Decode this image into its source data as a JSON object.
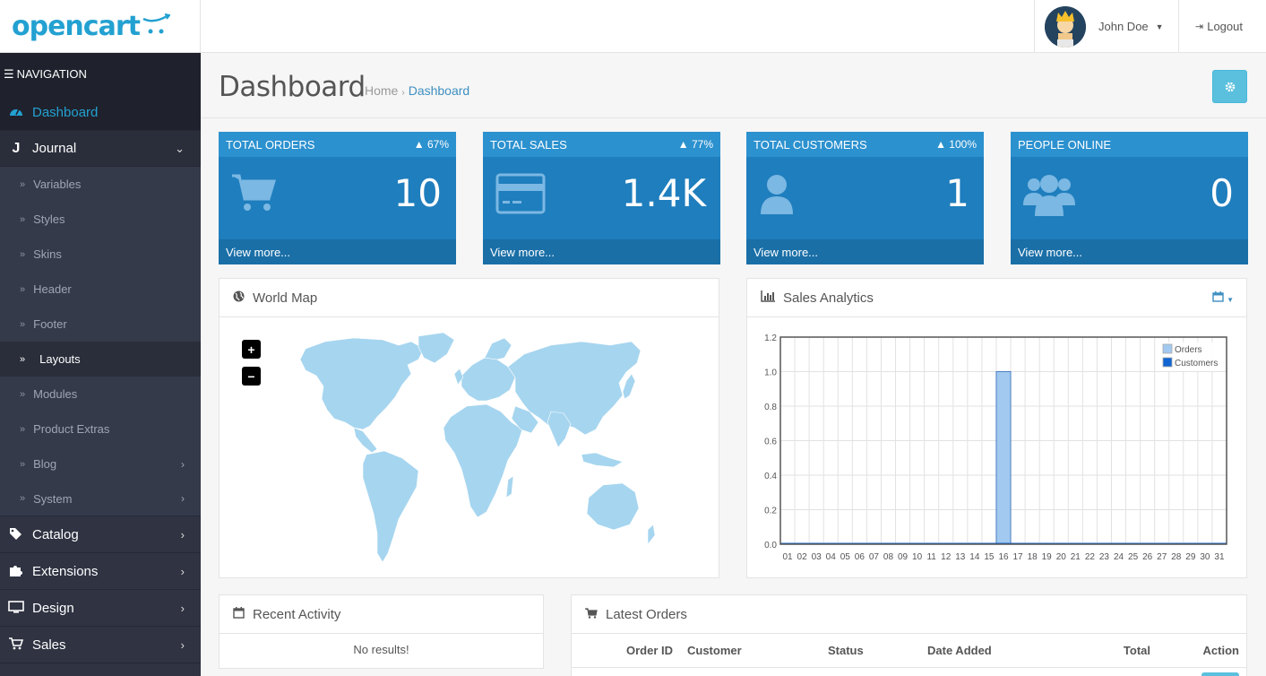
{
  "brand": {
    "name": "opencart"
  },
  "header": {
    "user_name": "John Doe",
    "logout_label": "Logout"
  },
  "navigation": {
    "title": "NAVIGATION",
    "items": [
      {
        "label": "Dashboard",
        "icon": "dashboard-icon",
        "active": true
      },
      {
        "label": "Journal",
        "icon": "journal-icon",
        "open": true
      },
      {
        "label": "Catalog",
        "icon": "tags-icon"
      },
      {
        "label": "Extensions",
        "icon": "puzzle-icon"
      },
      {
        "label": "Design",
        "icon": "monitor-icon"
      },
      {
        "label": "Sales",
        "icon": "cart-icon"
      }
    ],
    "journal_sub": [
      {
        "label": "Variables"
      },
      {
        "label": "Styles"
      },
      {
        "label": "Skins"
      },
      {
        "label": "Header"
      },
      {
        "label": "Footer"
      },
      {
        "label": "Layouts",
        "current": true
      },
      {
        "label": "Modules"
      },
      {
        "label": "Product Extras"
      },
      {
        "label": "Blog",
        "has_children": true
      },
      {
        "label": "System",
        "has_children": true
      }
    ]
  },
  "page": {
    "title": "Dashboard",
    "breadcrumb": [
      "Home",
      "Dashboard"
    ]
  },
  "tiles": [
    {
      "title": "TOTAL ORDERS",
      "percent": "67%",
      "value": "10",
      "more": "View more...",
      "icon": "cart-icon"
    },
    {
      "title": "TOTAL SALES",
      "percent": "77%",
      "value": "1.4K",
      "more": "View more...",
      "icon": "credit-card-icon"
    },
    {
      "title": "TOTAL CUSTOMERS",
      "percent": "100%",
      "value": "1",
      "more": "View more...",
      "icon": "user-icon"
    },
    {
      "title": "PEOPLE ONLINE",
      "percent": "",
      "value": "0",
      "more": "View more...",
      "icon": "users-icon"
    }
  ],
  "world_map": {
    "title": "World Map",
    "zoom_in": "+",
    "zoom_out": "−",
    "color": "#a6d5ef"
  },
  "chart_data": {
    "type": "bar",
    "title": "Sales Analytics",
    "categories": [
      "01",
      "02",
      "03",
      "04",
      "05",
      "06",
      "07",
      "08",
      "09",
      "10",
      "11",
      "12",
      "13",
      "14",
      "15",
      "16",
      "17",
      "18",
      "19",
      "20",
      "21",
      "22",
      "23",
      "24",
      "25",
      "26",
      "27",
      "28",
      "29",
      "30",
      "31"
    ],
    "series": [
      {
        "name": "Orders",
        "color": "#a2c9f0",
        "values": [
          0,
          0,
          0,
          0,
          0,
          0,
          0,
          0,
          0,
          0,
          0,
          0,
          0,
          0,
          0,
          1,
          0,
          0,
          0,
          0,
          0,
          0,
          0,
          0,
          0,
          0,
          0,
          0,
          0,
          0,
          0
        ]
      },
      {
        "name": "Customers",
        "color": "#1065d2",
        "values": [
          0,
          0,
          0,
          0,
          0,
          0,
          0,
          0,
          0,
          0,
          0,
          0,
          0,
          0,
          0,
          0,
          0,
          0,
          0,
          0,
          0,
          0,
          0,
          0,
          0,
          0,
          0,
          0,
          0,
          0,
          0
        ]
      }
    ],
    "yticks": [
      "0.0",
      "0.2",
      "0.4",
      "0.6",
      "0.8",
      "1.0",
      "1.2"
    ],
    "ylim": [
      0,
      1.2
    ],
    "grid": true,
    "legend": "top-right"
  },
  "recent_activity": {
    "title": "Recent Activity",
    "empty": "No results!"
  },
  "latest_orders": {
    "title": "Latest Orders",
    "columns": [
      "Order ID",
      "Customer",
      "Status",
      "Date Added",
      "Total",
      "Action"
    ]
  },
  "colors": {
    "accent": "#23a1d1",
    "tile": "#1f7ebd",
    "tile_head": "#2c91cf",
    "sidebar": "#2f3342",
    "info_button": "#5bc0de"
  }
}
